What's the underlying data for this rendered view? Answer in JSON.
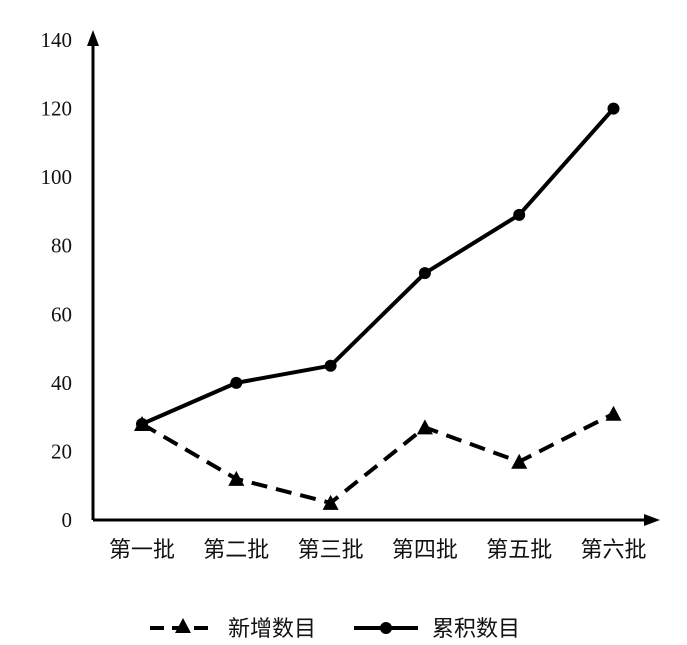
{
  "chart_data": {
    "type": "line",
    "categories": [
      "第一批",
      "第二批",
      "第三批",
      "第四批",
      "第五批",
      "第六批"
    ],
    "series": [
      {
        "name": "新增数目",
        "values": [
          28,
          12,
          5,
          27,
          17,
          31
        ],
        "style": "dashed",
        "marker": "triangle",
        "color": "#000000"
      },
      {
        "name": "累积数目",
        "values": [
          28,
          40,
          45,
          72,
          89,
          120
        ],
        "style": "solid",
        "marker": "circle",
        "color": "#000000"
      }
    ],
    "y_ticks": [
      "0",
      "20",
      "40",
      "60",
      "80",
      "100",
      "120",
      "140"
    ],
    "ylim": [
      0,
      140
    ],
    "title": "",
    "xlabel": "",
    "ylabel": "",
    "grid": false,
    "legend_position": "bottom"
  }
}
